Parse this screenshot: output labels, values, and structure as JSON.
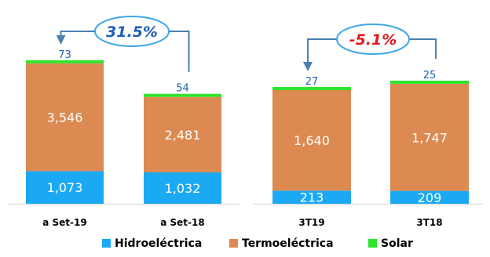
{
  "chart_data": [
    {
      "type": "bar",
      "stacked": true,
      "categories": [
        "a Set-19",
        "a Set-18"
      ],
      "series": [
        {
          "name": "Hidroeléctrica",
          "values": [
            1073,
            1032
          ],
          "labels": [
            "1,073",
            "1,032"
          ]
        },
        {
          "name": "Termoeléctrica",
          "values": [
            3546,
            2481
          ],
          "labels": [
            "3,546",
            "2,481"
          ]
        },
        {
          "name": "Solar",
          "values": [
            73,
            54
          ],
          "labels": [
            "73",
            "54"
          ]
        }
      ],
      "annotation": {
        "text": "31.5%",
        "color": "#1F5FB4"
      }
    },
    {
      "type": "bar",
      "stacked": true,
      "categories": [
        "3T19",
        "3T18"
      ],
      "series": [
        {
          "name": "Hidroeléctrica",
          "values": [
            213,
            209
          ],
          "labels": [
            "213",
            "209"
          ]
        },
        {
          "name": "Termoeléctrica",
          "values": [
            1640,
            1747
          ],
          "labels": [
            "1,640",
            "1,747"
          ]
        },
        {
          "name": "Solar",
          "values": [
            27,
            25
          ],
          "labels": [
            "27",
            "25"
          ]
        }
      ],
      "annotation": {
        "text": "-5.1%",
        "color": "#E0191F"
      }
    }
  ],
  "legend": {
    "position": "bottom",
    "items": [
      {
        "label": "Hidroeléctrica",
        "color": "#1CA9F4"
      },
      {
        "label": "Termoeléctrica",
        "color": "#DC8A51"
      },
      {
        "label": "Solar",
        "color": "#2EE42E"
      }
    ]
  },
  "colors": {
    "hidro": "#1CA9F4",
    "termo": "#DC8A51",
    "solar": "#2EE42E",
    "arrow": "#4A7FB0",
    "bubble": "#3DA7E6",
    "solar_label": "#1F5FB4"
  }
}
